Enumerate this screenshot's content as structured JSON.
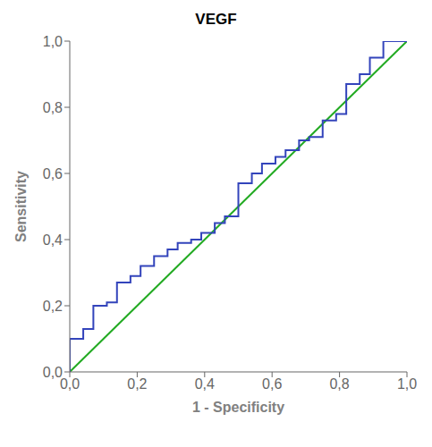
{
  "chart_data": {
    "type": "line",
    "title": "VEGF",
    "xlabel": "1 - Specificity",
    "ylabel": "Sensitivity",
    "xlim": [
      0.0,
      1.0
    ],
    "ylim": [
      0.0,
      1.0
    ],
    "xticks": [
      {
        "value": 0.0,
        "label": "0,0"
      },
      {
        "value": 0.2,
        "label": "0,2"
      },
      {
        "value": 0.4,
        "label": "0,4"
      },
      {
        "value": 0.6,
        "label": "0,6"
      },
      {
        "value": 0.8,
        "label": "0,8"
      },
      {
        "value": 1.0,
        "label": "1,0"
      }
    ],
    "yticks": [
      {
        "value": 0.0,
        "label": "0,0"
      },
      {
        "value": 0.2,
        "label": "0,2"
      },
      {
        "value": 0.4,
        "label": "0,4"
      },
      {
        "value": 0.6,
        "label": "0,6"
      },
      {
        "value": 0.8,
        "label": "0,8"
      },
      {
        "value": 1.0,
        "label": "1,0"
      }
    ],
    "grid": false,
    "series": [
      {
        "color": "#22aa22",
        "x": [
          0,
          1
        ],
        "values": [
          0,
          1
        ]
      },
      {
        "color": "#3344bb",
        "x": [
          0.0,
          0.0,
          0.04,
          0.04,
          0.07,
          0.07,
          0.11,
          0.11,
          0.14,
          0.14,
          0.18,
          0.18,
          0.21,
          0.21,
          0.25,
          0.25,
          0.29,
          0.29,
          0.32,
          0.32,
          0.36,
          0.36,
          0.39,
          0.39,
          0.43,
          0.43,
          0.46,
          0.46,
          0.5,
          0.5,
          0.54,
          0.54,
          0.57,
          0.57,
          0.61,
          0.61,
          0.64,
          0.64,
          0.68,
          0.68,
          0.71,
          0.71,
          0.75,
          0.75,
          0.79,
          0.79,
          0.82,
          0.82,
          0.86,
          0.86,
          0.89,
          0.89,
          0.93,
          0.93,
          1.0,
          1.0
        ],
        "values": [
          0.0,
          0.1,
          0.1,
          0.13,
          0.13,
          0.2,
          0.2,
          0.21,
          0.21,
          0.27,
          0.27,
          0.29,
          0.29,
          0.32,
          0.32,
          0.35,
          0.35,
          0.37,
          0.37,
          0.39,
          0.39,
          0.4,
          0.4,
          0.42,
          0.42,
          0.45,
          0.45,
          0.47,
          0.47,
          0.57,
          0.57,
          0.6,
          0.6,
          0.63,
          0.63,
          0.65,
          0.65,
          0.67,
          0.67,
          0.7,
          0.7,
          0.71,
          0.71,
          0.76,
          0.76,
          0.78,
          0.78,
          0.87,
          0.87,
          0.9,
          0.9,
          0.95,
          0.95,
          1.0,
          1.0,
          1.0
        ]
      }
    ]
  }
}
